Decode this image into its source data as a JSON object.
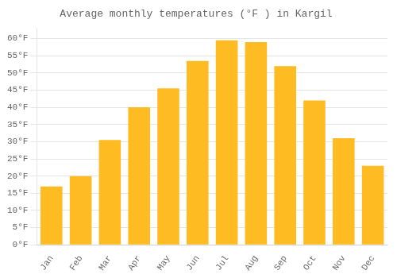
{
  "chart_data": {
    "type": "bar",
    "title": "Average monthly temperatures (°F ) in Kargil",
    "categories": [
      "Jan",
      "Feb",
      "Mar",
      "Apr",
      "May",
      "Jun",
      "Jul",
      "Aug",
      "Sep",
      "Oct",
      "Nov",
      "Dec"
    ],
    "values": [
      17,
      20,
      30.5,
      40,
      45.5,
      53.5,
      59.5,
      59,
      52,
      42,
      31,
      23
    ],
    "color": "#FFBB22",
    "ylim": [
      0,
      63
    ],
    "yticks": [
      {
        "value": 0,
        "label": "0°F"
      },
      {
        "value": 5,
        "label": "5°F"
      },
      {
        "value": 10,
        "label": "10°F"
      },
      {
        "value": 15,
        "label": "15°F"
      },
      {
        "value": 20,
        "label": "20°F"
      },
      {
        "value": 25,
        "label": "25°F"
      },
      {
        "value": 30,
        "label": "30°F"
      },
      {
        "value": 35,
        "label": "35°F"
      },
      {
        "value": 40,
        "label": "40°F"
      },
      {
        "value": 45,
        "label": "45°F"
      },
      {
        "value": 50,
        "label": "50°F"
      },
      {
        "value": 55,
        "label": "55°F"
      },
      {
        "value": 60,
        "label": "60°F"
      }
    ],
    "grid": true
  }
}
